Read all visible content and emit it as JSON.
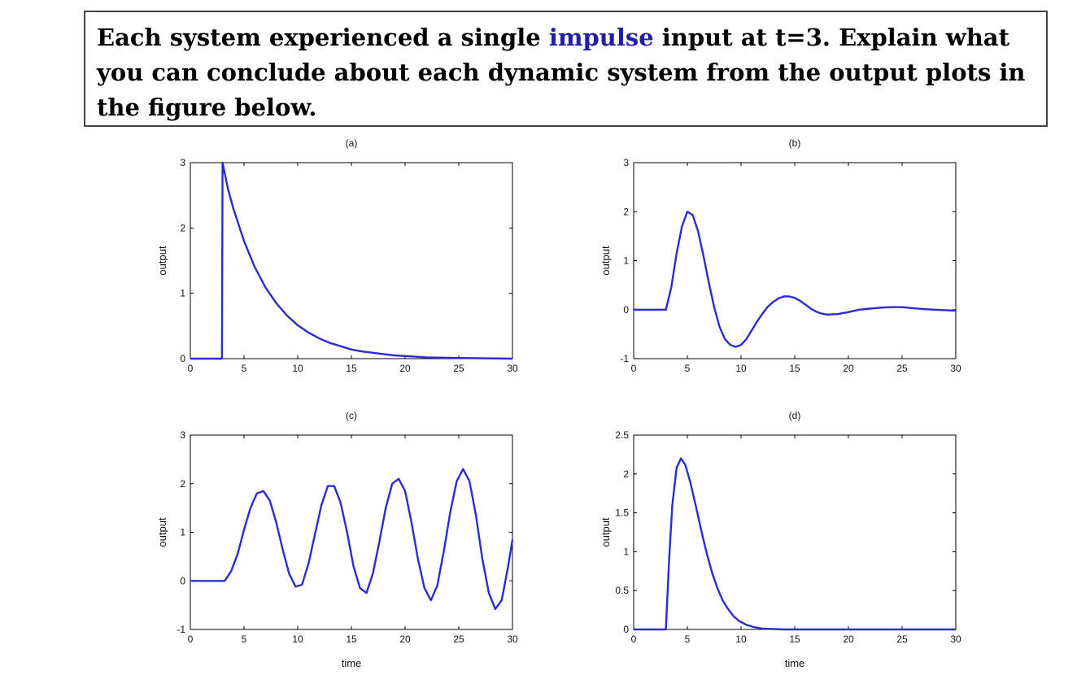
{
  "question": {
    "part1": "Each system experienced a single ",
    "highlight": "impulse",
    "part2": " input at t=3.  Explain what you can conclude about each dynamic system from the output plots in the figure below.",
    "highlight_color": "#1f1fa8"
  },
  "line_color": "#2b2bd0",
  "chart_data": [
    {
      "id": "a",
      "type": "line",
      "title": "(a)",
      "xlabel": "",
      "ylabel": "output",
      "xlim": [
        0,
        30
      ],
      "ylim": [
        0,
        3
      ],
      "xticks": [
        0,
        5,
        10,
        15,
        20,
        25,
        30
      ],
      "yticks": [
        0,
        1,
        2,
        3
      ],
      "series": [
        {
          "x": [
            0,
            2.95,
            3.0,
            3.5,
            4,
            5,
            6,
            7,
            8,
            9,
            10,
            11,
            12,
            13,
            14,
            15,
            16,
            17,
            18,
            19,
            20,
            22,
            25,
            30
          ],
          "y": [
            0,
            0,
            3.0,
            2.6,
            2.3,
            1.8,
            1.4,
            1.09,
            0.85,
            0.66,
            0.51,
            0.4,
            0.31,
            0.24,
            0.19,
            0.14,
            0.11,
            0.09,
            0.07,
            0.05,
            0.04,
            0.02,
            0.01,
            0
          ]
        }
      ]
    },
    {
      "id": "b",
      "type": "line",
      "title": "(b)",
      "xlabel": "",
      "ylabel": "output",
      "xlim": [
        0,
        30
      ],
      "ylim": [
        -1,
        3
      ],
      "xticks": [
        0,
        5,
        10,
        15,
        20,
        25,
        30
      ],
      "yticks": [
        -1,
        0,
        1,
        2,
        3
      ],
      "series": [
        {
          "x": [
            0,
            3,
            3.5,
            4,
            4.5,
            5,
            5.5,
            6,
            6.5,
            7,
            7.5,
            8,
            8.5,
            9,
            9.5,
            10,
            10.5,
            11,
            11.5,
            12,
            12.5,
            13,
            13.5,
            14,
            14.5,
            15,
            15.5,
            16,
            16.5,
            17,
            17.5,
            18,
            19,
            20,
            21,
            22,
            23,
            24,
            25,
            26,
            27,
            28,
            29,
            30
          ],
          "y": [
            0,
            0,
            0.45,
            1.15,
            1.7,
            2.0,
            1.93,
            1.6,
            1.1,
            0.55,
            0.05,
            -0.35,
            -0.6,
            -0.72,
            -0.76,
            -0.72,
            -0.6,
            -0.42,
            -0.24,
            -0.08,
            0.06,
            0.16,
            0.23,
            0.27,
            0.27,
            0.24,
            0.18,
            0.1,
            0.02,
            -0.04,
            -0.08,
            -0.1,
            -0.09,
            -0.05,
            0.0,
            0.02,
            0.04,
            0.05,
            0.05,
            0.03,
            0.01,
            0.0,
            -0.01,
            -0.02
          ]
        }
      ]
    },
    {
      "id": "c",
      "type": "line",
      "title": "(c)",
      "xlabel": "time",
      "ylabel": "output",
      "xlim": [
        0,
        30
      ],
      "ylim": [
        -1,
        3
      ],
      "xticks": [
        0,
        5,
        10,
        15,
        20,
        25,
        30
      ],
      "yticks": [
        -1,
        0,
        1,
        2,
        3
      ],
      "series": [
        {
          "x": [
            0,
            3.2,
            3.8,
            4.4,
            5,
            5.6,
            6.2,
            6.8,
            7.4,
            8,
            8.6,
            9.2,
            9.8,
            10.4,
            11,
            11.6,
            12.2,
            12.8,
            13.4,
            14,
            14.6,
            15.2,
            15.8,
            16.4,
            17,
            17.6,
            18.2,
            18.8,
            19.4,
            20,
            20.6,
            21.2,
            21.8,
            22.4,
            23,
            23.6,
            24.2,
            24.8,
            25.4,
            26,
            26.6,
            27.2,
            27.8,
            28.4,
            29,
            29.6,
            30
          ],
          "y": [
            0,
            0,
            0.2,
            0.55,
            1.05,
            1.5,
            1.8,
            1.85,
            1.65,
            1.2,
            0.65,
            0.15,
            -0.12,
            -0.08,
            0.35,
            0.95,
            1.55,
            1.95,
            1.95,
            1.6,
            1.0,
            0.3,
            -0.15,
            -0.25,
            0.15,
            0.8,
            1.5,
            2.0,
            2.1,
            1.85,
            1.2,
            0.45,
            -0.15,
            -0.4,
            -0.1,
            0.6,
            1.4,
            2.05,
            2.3,
            2.05,
            1.35,
            0.45,
            -0.25,
            -0.58,
            -0.4,
            0.3,
            0.85
          ]
        }
      ]
    },
    {
      "id": "d",
      "type": "line",
      "title": "(d)",
      "xlabel": "time",
      "ylabel": "output",
      "xlim": [
        0,
        30
      ],
      "ylim": [
        0,
        2.5
      ],
      "xticks": [
        0,
        5,
        10,
        15,
        20,
        25,
        30
      ],
      "yticks": [
        0,
        0.5,
        1,
        1.5,
        2,
        2.5
      ],
      "series": [
        {
          "x": [
            0,
            3,
            3.3,
            3.6,
            4,
            4.4,
            4.8,
            5.3,
            5.8,
            6.3,
            6.8,
            7.3,
            7.8,
            8.3,
            8.8,
            9.3,
            9.8,
            10.5,
            11.2,
            12,
            13,
            14,
            15,
            20,
            25,
            30
          ],
          "y": [
            0,
            0,
            0.9,
            1.6,
            2.08,
            2.2,
            2.12,
            1.88,
            1.58,
            1.27,
            0.98,
            0.73,
            0.53,
            0.37,
            0.26,
            0.17,
            0.11,
            0.06,
            0.03,
            0.01,
            0.005,
            0,
            0,
            0,
            0,
            0
          ]
        }
      ]
    }
  ]
}
